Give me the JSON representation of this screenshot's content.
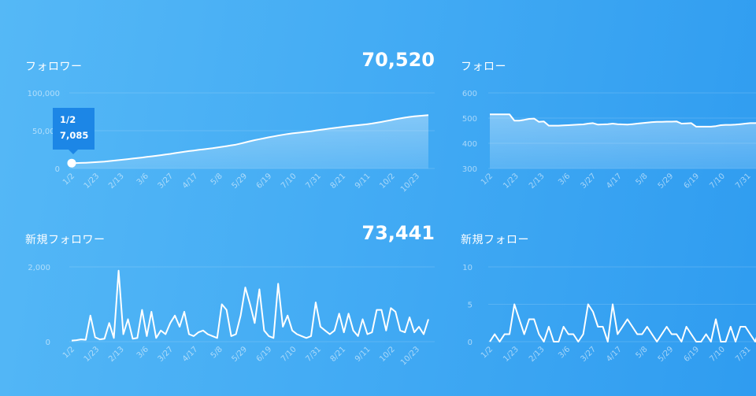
{
  "colors": {
    "background_left": "#55b8f6",
    "background_right": "#2f9cf0",
    "line": "#ffffff",
    "tooltip": "#1c86e6"
  },
  "panels": {
    "followers": {
      "title": "フォロワー",
      "total": "70,520"
    },
    "following": {
      "title": "フォロー"
    },
    "new_followers": {
      "title": "新規フォロワー",
      "total": "73,441"
    },
    "new_following": {
      "title": "新規フォロー"
    }
  },
  "tooltip": {
    "date": "1/2",
    "value": "7,085"
  },
  "chart_data": [
    {
      "id": "followers",
      "type": "area",
      "x_tick_labels": [
        "1/2",
        "1/23",
        "2/13",
        "3/6",
        "3/27",
        "4/17",
        "5/8",
        "5/29",
        "6/19",
        "7/10",
        "7/31",
        "8/21",
        "9/11",
        "10/2",
        "10/23"
      ],
      "y_tick_labels": [
        "0",
        "50,000",
        "100,000"
      ],
      "y_ticks": [
        0,
        50000,
        100000
      ],
      "ylim": [
        0,
        100000
      ],
      "grid": true,
      "x": [
        "1/2",
        "1/6",
        "1/10",
        "1/14",
        "1/18",
        "1/22",
        "1/26",
        "1/30",
        "2/3",
        "2/7",
        "2/11",
        "2/15",
        "2/19",
        "2/23",
        "2/27",
        "3/3",
        "3/7",
        "3/11",
        "3/15",
        "3/19",
        "3/23",
        "3/27",
        "3/31",
        "4/4",
        "4/8",
        "4/12",
        "4/16",
        "4/20",
        "4/24",
        "4/28",
        "5/2",
        "5/6",
        "5/10",
        "5/14",
        "5/18",
        "5/22",
        "5/26",
        "5/30",
        "6/3",
        "6/7",
        "6/11",
        "6/15",
        "6/19",
        "6/23",
        "6/27",
        "7/1",
        "7/5",
        "7/9",
        "7/13",
        "7/17",
        "7/21",
        "7/25",
        "7/29",
        "8/2",
        "8/6",
        "8/10",
        "8/14",
        "8/18",
        "8/22",
        "8/26",
        "8/30",
        "9/3",
        "9/7",
        "9/11",
        "9/15",
        "9/19",
        "9/23",
        "9/27",
        "10/1",
        "10/5",
        "10/9",
        "10/13",
        "10/17",
        "10/21",
        "10/25",
        "10/29",
        "11/2"
      ],
      "values": [
        7085,
        7200,
        7400,
        7600,
        7900,
        8300,
        8700,
        9200,
        9800,
        10400,
        11000,
        11700,
        12400,
        13100,
        13800,
        14500,
        15300,
        16000,
        16800,
        17600,
        18400,
        19300,
        20300,
        21300,
        22200,
        23000,
        23800,
        24600,
        25300,
        26000,
        26800,
        27700,
        28600,
        29600,
        30600,
        31600,
        33000,
        34500,
        36000,
        37500,
        38800,
        40000,
        41200,
        42400,
        43500,
        44600,
        45600,
        46500,
        47200,
        47800,
        48500,
        49300,
        50200,
        51100,
        52000,
        52800,
        53600,
        54400,
        55200,
        56000,
        56700,
        57300,
        57900,
        58600,
        59500,
        60500,
        61600,
        62800,
        64000,
        65200,
        66300,
        67300,
        68200,
        69000,
        69600,
        70100,
        70520
      ]
    },
    {
      "id": "following",
      "type": "area",
      "x_tick_labels": [
        "1/2",
        "1/23",
        "2/13",
        "3/6",
        "3/27",
        "4/17",
        "5/8",
        "5/29",
        "6/19",
        "7/10",
        "7/31"
      ],
      "y_tick_labels": [
        "300",
        "400",
        "500",
        "600"
      ],
      "y_ticks": [
        300,
        400,
        500,
        600
      ],
      "ylim": [
        300,
        600
      ],
      "grid": true,
      "values": [
        515,
        515,
        515,
        515,
        515,
        490,
        490,
        493,
        497,
        498,
        485,
        487,
        470,
        470,
        470,
        471,
        472,
        473,
        474,
        475,
        478,
        480,
        474,
        475,
        476,
        478,
        476,
        475,
        474,
        476,
        478,
        480,
        482,
        484,
        485,
        485,
        486,
        486,
        487,
        478,
        479,
        480,
        466,
        466,
        466,
        466,
        468,
        472,
        473,
        473,
        474,
        476,
        478,
        480,
        480,
        482,
        483,
        484,
        485,
        486,
        486,
        487,
        488,
        489,
        490,
        491,
        492,
        493,
        494,
        495,
        496,
        497,
        498,
        499,
        500,
        500,
        501
      ]
    },
    {
      "id": "new_followers",
      "type": "line",
      "x_tick_labels": [
        "1/2",
        "1/23",
        "2/13",
        "3/6",
        "3/27",
        "4/17",
        "5/8",
        "5/29",
        "6/19",
        "7/10",
        "7/31",
        "8/21",
        "9/11",
        "10/2",
        "10/23"
      ],
      "y_tick_labels": [
        "0",
        "2,000"
      ],
      "y_ticks": [
        0,
        2000
      ],
      "ylim": [
        0,
        2000
      ],
      "grid": true,
      "values": [
        30,
        40,
        60,
        50,
        700,
        120,
        60,
        80,
        500,
        100,
        1900,
        200,
        600,
        80,
        100,
        850,
        150,
        800,
        100,
        300,
        200,
        500,
        700,
        400,
        800,
        200,
        150,
        250,
        300,
        200,
        150,
        100,
        1000,
        850,
        150,
        200,
        700,
        1450,
        1000,
        500,
        1400,
        300,
        150,
        100,
        1550,
        400,
        700,
        300,
        200,
        150,
        100,
        150,
        1050,
        400,
        300,
        200,
        300,
        750,
        250,
        750,
        300,
        150,
        600,
        200,
        250,
        850,
        850,
        300,
        900,
        800,
        300,
        250,
        650,
        250,
        400,
        200,
        600
      ]
    },
    {
      "id": "new_following",
      "type": "line",
      "x_tick_labels": [
        "1/2",
        "1/23",
        "2/13",
        "3/6",
        "3/27",
        "4/17",
        "5/8",
        "5/29",
        "6/19",
        "7/10",
        "7/31"
      ],
      "y_tick_labels": [
        "0",
        "5",
        "10"
      ],
      "y_ticks": [
        0,
        5,
        10
      ],
      "ylim": [
        0,
        10
      ],
      "grid": true,
      "values": [
        0,
        1,
        0,
        1,
        1,
        5,
        3,
        1,
        3,
        3,
        1,
        0,
        2,
        0,
        0,
        2,
        1,
        1,
        0,
        1,
        5,
        4,
        2,
        2,
        0,
        5,
        1,
        2,
        3,
        2,
        1,
        1,
        2,
        1,
        0,
        1,
        2,
        1,
        1,
        0,
        2,
        1,
        0,
        0,
        1,
        0,
        3,
        0,
        0,
        2,
        0,
        2,
        2,
        1,
        0,
        2,
        1,
        0,
        1,
        2,
        0,
        1,
        0,
        1,
        2,
        0,
        1,
        0,
        1,
        2,
        1,
        0,
        1,
        0,
        2,
        1,
        0
      ]
    }
  ]
}
